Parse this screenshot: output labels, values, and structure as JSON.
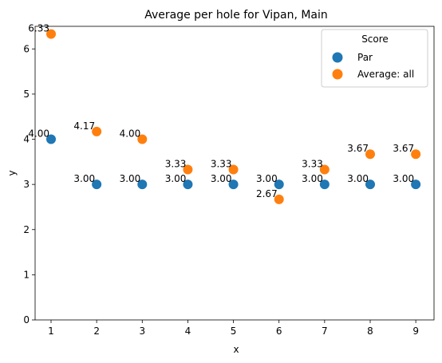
{
  "chart_data": {
    "type": "scatter",
    "title": "Average per hole for Vipan, Main",
    "xlabel": "x",
    "ylabel": "y",
    "x": [
      1,
      2,
      3,
      4,
      5,
      6,
      7,
      8,
      9
    ],
    "xlim": [
      0.65,
      9.4
    ],
    "ylim": [
      0,
      6.5
    ],
    "xticks": [
      "1",
      "2",
      "3",
      "4",
      "5",
      "6",
      "7",
      "8",
      "9"
    ],
    "yticks": [
      "0",
      "1",
      "2",
      "3",
      "4",
      "5",
      "6"
    ],
    "grid": false,
    "legend": {
      "title": "Score",
      "placement": "top-right"
    },
    "series": [
      {
        "name": "Par",
        "color": "#1f77b4",
        "values": [
          4,
          3,
          3,
          3,
          3,
          3,
          3,
          3,
          3
        ],
        "labels": [
          "4.00",
          "3.00",
          "3.00",
          "3.00",
          "3.00",
          "3.00",
          "3.00",
          "3.00",
          "3.00"
        ]
      },
      {
        "name": "Average: all",
        "color": "#ff7f0e",
        "values": [
          6.33,
          4.17,
          4.0,
          3.33,
          3.33,
          2.67,
          3.33,
          3.67,
          3.67
        ],
        "labels": [
          "6.33",
          "4.17",
          "4.00",
          "3.33",
          "3.33",
          "2.67",
          "3.33",
          "3.67",
          "3.67"
        ]
      }
    ]
  }
}
